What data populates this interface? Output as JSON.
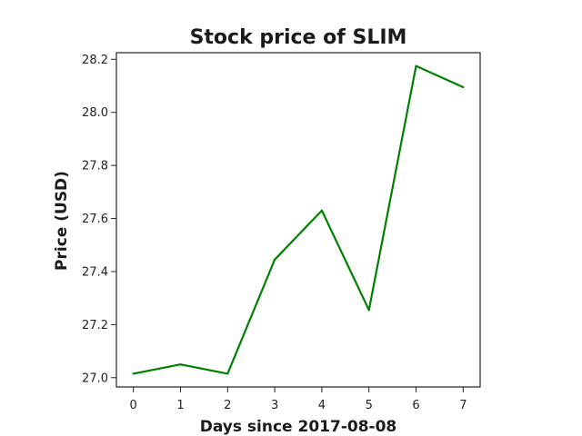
{
  "chart_data": {
    "type": "line",
    "title": "Stock price of SLIM",
    "xlabel": "Days since 2017-08-08",
    "ylabel": "Price (USD)",
    "x": [
      0,
      1,
      2,
      3,
      4,
      5,
      6,
      7
    ],
    "series": [
      {
        "values": [
          27.015,
          27.05,
          27.015,
          27.445,
          27.63,
          27.255,
          28.175,
          28.095
        ],
        "color": "#008000"
      }
    ],
    "xlim": [
      -0.36,
      7.36
    ],
    "ylim": [
      26.965,
      28.225
    ],
    "xticks": [
      0,
      1,
      2,
      3,
      4,
      5,
      6,
      7
    ],
    "xtick_labels": [
      "0",
      "1",
      "2",
      "3",
      "4",
      "5",
      "6",
      "7"
    ],
    "yticks": [
      27.0,
      27.2,
      27.4,
      27.6,
      27.8,
      28.0,
      28.2
    ],
    "ytick_labels": [
      "27.0",
      "27.2",
      "27.4",
      "27.6",
      "27.8",
      "28.0",
      "28.2"
    ],
    "grid": false,
    "legend": false
  }
}
